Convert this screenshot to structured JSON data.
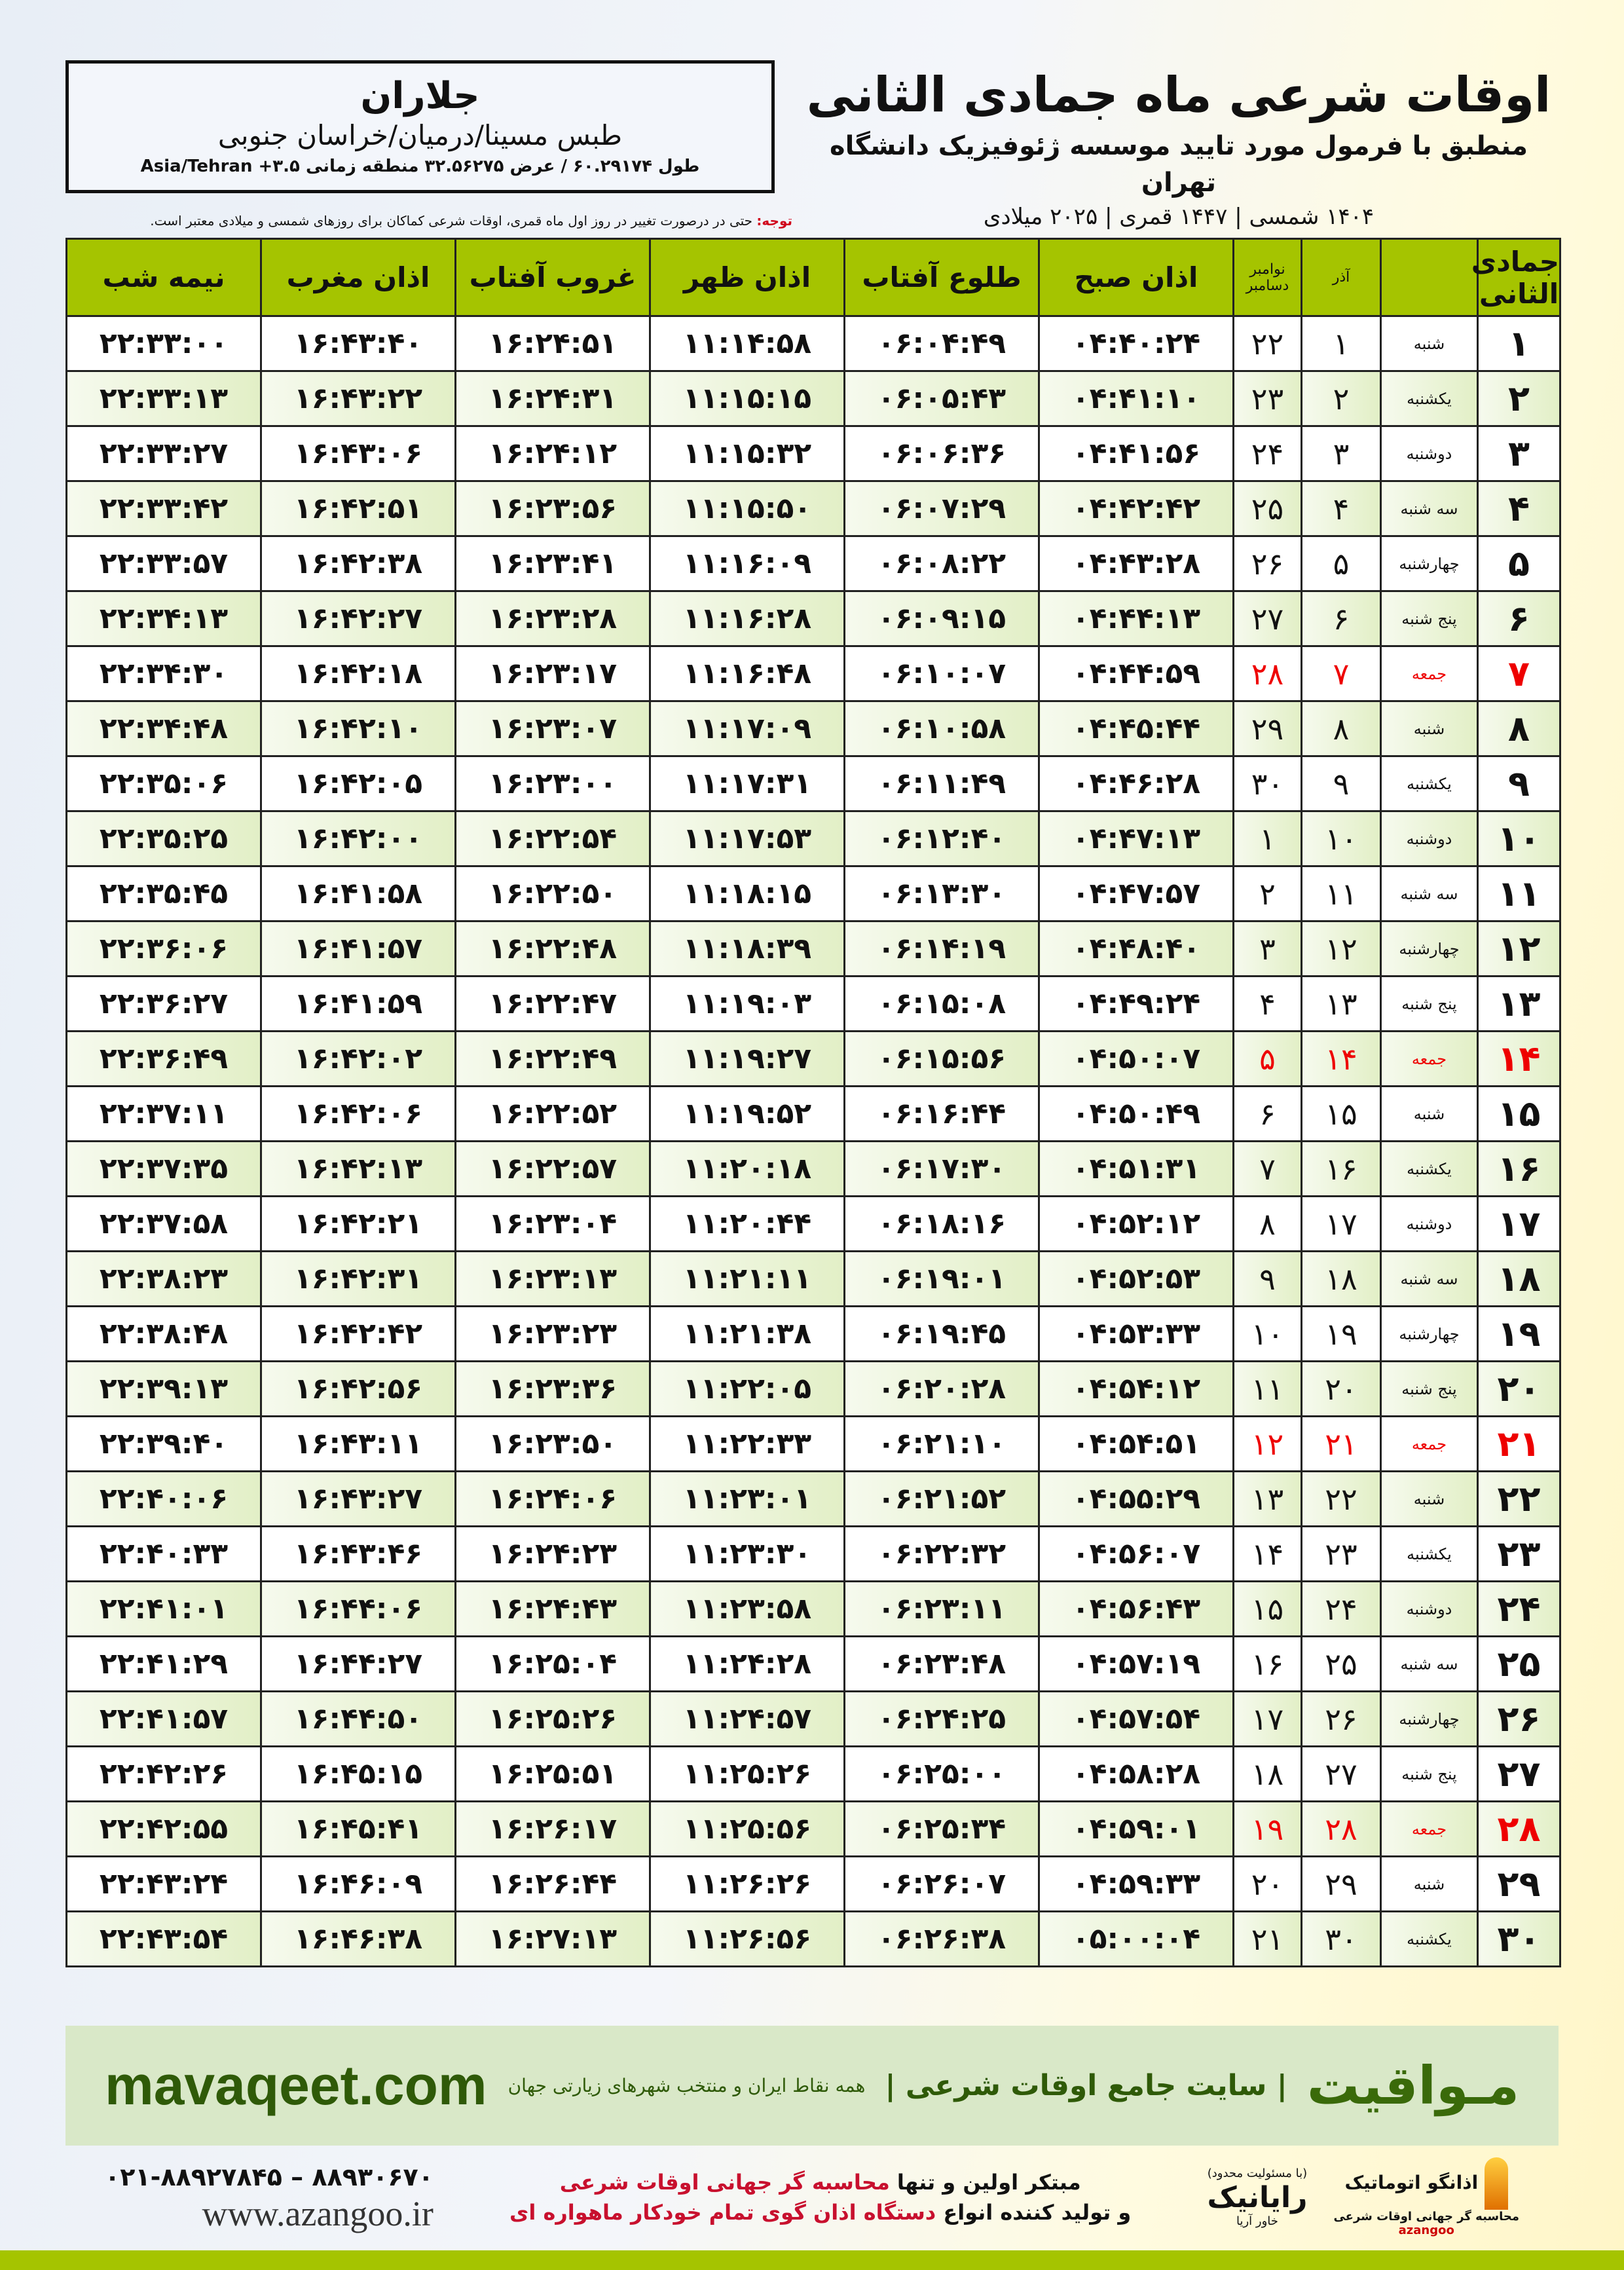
{
  "location": {
    "city": "جلاران",
    "region": "طبس مسینا/درمیان/خراسان جنوبی",
    "coords": "طول ۶۰.۲۹۱۷۴ / عرض ۳۲.۵۶۲۷۵ منطقه زمانی ۳.۵+ Asia/Tehran"
  },
  "header": {
    "title": "اوقات شرعی ماه جمادی الثانی",
    "subtitle": "منطبق با فرمول مورد تایید موسسه ژئوفیزیک دانشگاه تهران",
    "years": "۱۴۰۴ شمسی | ۱۴۴۷ قمری | ۲۰۲۵ میلادی"
  },
  "note": {
    "label": "توجه:",
    "text": " حتی در درصورت تغییر در روز اول ماه قمری، اوقات شرعی کماکان برای روزهای شمسی و میلادی معتبر است."
  },
  "table": {
    "columns": [
      "جمادی الثانی",
      "آذر",
      "نوامبر دسامبر",
      "اذان صبح",
      "طلوع آفتاب",
      "اذان ظهر",
      "غروب آفتاب",
      "اذان مغرب",
      "نیمه شب"
    ],
    "holiday_color": "#e00000",
    "rows": [
      [
        "۱",
        "شنبه",
        "۱",
        "۲۲",
        "۰۴:۴۰:۲۴",
        "۰۶:۰۴:۴۹",
        "۱۱:۱۴:۵۸",
        "۱۶:۲۴:۵۱",
        "۱۶:۴۳:۴۰",
        "۲۲:۳۳:۰۰"
      ],
      [
        "۲",
        "یکشنبه",
        "۲",
        "۲۳",
        "۰۴:۴۱:۱۰",
        "۰۶:۰۵:۴۳",
        "۱۱:۱۵:۱۵",
        "۱۶:۲۴:۳۱",
        "۱۶:۴۳:۲۲",
        "۲۲:۳۳:۱۳"
      ],
      [
        "۳",
        "دوشنبه",
        "۳",
        "۲۴",
        "۰۴:۴۱:۵۶",
        "۰۶:۰۶:۳۶",
        "۱۱:۱۵:۳۲",
        "۱۶:۲۴:۱۲",
        "۱۶:۴۳:۰۶",
        "۲۲:۳۳:۲۷"
      ],
      [
        "۴",
        "سه شنبه",
        "۴",
        "۲۵",
        "۰۴:۴۲:۴۲",
        "۰۶:۰۷:۲۹",
        "۱۱:۱۵:۵۰",
        "۱۶:۲۳:۵۶",
        "۱۶:۴۲:۵۱",
        "۲۲:۳۳:۴۲"
      ],
      [
        "۵",
        "چهارشنبه",
        "۵",
        "۲۶",
        "۰۴:۴۳:۲۸",
        "۰۶:۰۸:۲۲",
        "۱۱:۱۶:۰۹",
        "۱۶:۲۳:۴۱",
        "۱۶:۴۲:۳۸",
        "۲۲:۳۳:۵۷"
      ],
      [
        "۶",
        "پنج شنبه",
        "۶",
        "۲۷",
        "۰۴:۴۴:۱۳",
        "۰۶:۰۹:۱۵",
        "۱۱:۱۶:۲۸",
        "۱۶:۲۳:۲۸",
        "۱۶:۴۲:۲۷",
        "۲۲:۳۴:۱۳"
      ],
      [
        "۷",
        "جمعه",
        "۷",
        "۲۸",
        "۰۴:۴۴:۵۹",
        "۰۶:۱۰:۰۷",
        "۱۱:۱۶:۴۸",
        "۱۶:۲۳:۱۷",
        "۱۶:۴۲:۱۸",
        "۲۲:۳۴:۳۰"
      ],
      [
        "۸",
        "شنبه",
        "۸",
        "۲۹",
        "۰۴:۴۵:۴۴",
        "۰۶:۱۰:۵۸",
        "۱۱:۱۷:۰۹",
        "۱۶:۲۳:۰۷",
        "۱۶:۴۲:۱۰",
        "۲۲:۳۴:۴۸"
      ],
      [
        "۹",
        "یکشنبه",
        "۹",
        "۳۰",
        "۰۴:۴۶:۲۸",
        "۰۶:۱۱:۴۹",
        "۱۱:۱۷:۳۱",
        "۱۶:۲۳:۰۰",
        "۱۶:۴۲:۰۵",
        "۲۲:۳۵:۰۶"
      ],
      [
        "۱۰",
        "دوشنبه",
        "۱۰",
        "۱",
        "۰۴:۴۷:۱۳",
        "۰۶:۱۲:۴۰",
        "۱۱:۱۷:۵۳",
        "۱۶:۲۲:۵۴",
        "۱۶:۴۲:۰۰",
        "۲۲:۳۵:۲۵"
      ],
      [
        "۱۱",
        "سه شنبه",
        "۱۱",
        "۲",
        "۰۴:۴۷:۵۷",
        "۰۶:۱۳:۳۰",
        "۱۱:۱۸:۱۵",
        "۱۶:۲۲:۵۰",
        "۱۶:۴۱:۵۸",
        "۲۲:۳۵:۴۵"
      ],
      [
        "۱۲",
        "چهارشنبه",
        "۱۲",
        "۳",
        "۰۴:۴۸:۴۰",
        "۰۶:۱۴:۱۹",
        "۱۱:۱۸:۳۹",
        "۱۶:۲۲:۴۸",
        "۱۶:۴۱:۵۷",
        "۲۲:۳۶:۰۶"
      ],
      [
        "۱۳",
        "پنج شنبه",
        "۱۳",
        "۴",
        "۰۴:۴۹:۲۴",
        "۰۶:۱۵:۰۸",
        "۱۱:۱۹:۰۳",
        "۱۶:۲۲:۴۷",
        "۱۶:۴۱:۵۹",
        "۲۲:۳۶:۲۷"
      ],
      [
        "۱۴",
        "جمعه",
        "۱۴",
        "۵",
        "۰۴:۵۰:۰۷",
        "۰۶:۱۵:۵۶",
        "۱۱:۱۹:۲۷",
        "۱۶:۲۲:۴۹",
        "۱۶:۴۲:۰۲",
        "۲۲:۳۶:۴۹"
      ],
      [
        "۱۵",
        "شنبه",
        "۱۵",
        "۶",
        "۰۴:۵۰:۴۹",
        "۰۶:۱۶:۴۴",
        "۱۱:۱۹:۵۲",
        "۱۶:۲۲:۵۲",
        "۱۶:۴۲:۰۶",
        "۲۲:۳۷:۱۱"
      ],
      [
        "۱۶",
        "یکشنبه",
        "۱۶",
        "۷",
        "۰۴:۵۱:۳۱",
        "۰۶:۱۷:۳۰",
        "۱۱:۲۰:۱۸",
        "۱۶:۲۲:۵۷",
        "۱۶:۴۲:۱۳",
        "۲۲:۳۷:۳۵"
      ],
      [
        "۱۷",
        "دوشنبه",
        "۱۷",
        "۸",
        "۰۴:۵۲:۱۲",
        "۰۶:۱۸:۱۶",
        "۱۱:۲۰:۴۴",
        "۱۶:۲۳:۰۴",
        "۱۶:۴۲:۲۱",
        "۲۲:۳۷:۵۸"
      ],
      [
        "۱۸",
        "سه شنبه",
        "۱۸",
        "۹",
        "۰۴:۵۲:۵۳",
        "۰۶:۱۹:۰۱",
        "۱۱:۲۱:۱۱",
        "۱۶:۲۳:۱۳",
        "۱۶:۴۲:۳۱",
        "۲۲:۳۸:۲۳"
      ],
      [
        "۱۹",
        "چهارشنبه",
        "۱۹",
        "۱۰",
        "۰۴:۵۳:۳۳",
        "۰۶:۱۹:۴۵",
        "۱۱:۲۱:۳۸",
        "۱۶:۲۳:۲۳",
        "۱۶:۴۲:۴۲",
        "۲۲:۳۸:۴۸"
      ],
      [
        "۲۰",
        "پنج شنبه",
        "۲۰",
        "۱۱",
        "۰۴:۵۴:۱۲",
        "۰۶:۲۰:۲۸",
        "۱۱:۲۲:۰۵",
        "۱۶:۲۳:۳۶",
        "۱۶:۴۲:۵۶",
        "۲۲:۳۹:۱۳"
      ],
      [
        "۲۱",
        "جمعه",
        "۲۱",
        "۱۲",
        "۰۴:۵۴:۵۱",
        "۰۶:۲۱:۱۰",
        "۱۱:۲۲:۳۳",
        "۱۶:۲۳:۵۰",
        "۱۶:۴۳:۱۱",
        "۲۲:۳۹:۴۰"
      ],
      [
        "۲۲",
        "شنبه",
        "۲۲",
        "۱۳",
        "۰۴:۵۵:۲۹",
        "۰۶:۲۱:۵۲",
        "۱۱:۲۳:۰۱",
        "۱۶:۲۴:۰۶",
        "۱۶:۴۳:۲۷",
        "۲۲:۴۰:۰۶"
      ],
      [
        "۲۳",
        "یکشنبه",
        "۲۳",
        "۱۴",
        "۰۴:۵۶:۰۷",
        "۰۶:۲۲:۳۲",
        "۱۱:۲۳:۳۰",
        "۱۶:۲۴:۲۳",
        "۱۶:۴۳:۴۶",
        "۲۲:۴۰:۳۳"
      ],
      [
        "۲۴",
        "دوشنبه",
        "۲۴",
        "۱۵",
        "۰۴:۵۶:۴۳",
        "۰۶:۲۳:۱۱",
        "۱۱:۲۳:۵۸",
        "۱۶:۲۴:۴۳",
        "۱۶:۴۴:۰۶",
        "۲۲:۴۱:۰۱"
      ],
      [
        "۲۵",
        "سه شنبه",
        "۲۵",
        "۱۶",
        "۰۴:۵۷:۱۹",
        "۰۶:۲۳:۴۸",
        "۱۱:۲۴:۲۸",
        "۱۶:۲۵:۰۴",
        "۱۶:۴۴:۲۷",
        "۲۲:۴۱:۲۹"
      ],
      [
        "۲۶",
        "چهارشنبه",
        "۲۶",
        "۱۷",
        "۰۴:۵۷:۵۴",
        "۰۶:۲۴:۲۵",
        "۱۱:۲۴:۵۷",
        "۱۶:۲۵:۲۶",
        "۱۶:۴۴:۵۰",
        "۲۲:۴۱:۵۷"
      ],
      [
        "۲۷",
        "پنج شنبه",
        "۲۷",
        "۱۸",
        "۰۴:۵۸:۲۸",
        "۰۶:۲۵:۰۰",
        "۱۱:۲۵:۲۶",
        "۱۶:۲۵:۵۱",
        "۱۶:۴۵:۱۵",
        "۲۲:۴۲:۲۶"
      ],
      [
        "۲۸",
        "جمعه",
        "۲۸",
        "۱۹",
        "۰۴:۵۹:۰۱",
        "۰۶:۲۵:۳۴",
        "۱۱:۲۵:۵۶",
        "۱۶:۲۶:۱۷",
        "۱۶:۴۵:۴۱",
        "۲۲:۴۲:۵۵"
      ],
      [
        "۲۹",
        "شنبه",
        "۲۹",
        "۲۰",
        "۰۴:۵۹:۳۳",
        "۰۶:۲۶:۰۷",
        "۱۱:۲۶:۲۶",
        "۱۶:۲۶:۴۴",
        "۱۶:۴۶:۰۹",
        "۲۲:۴۳:۲۴"
      ],
      [
        "۳۰",
        "یکشنبه",
        "۳۰",
        "۲۱",
        "۰۵:۰۰:۰۴",
        "۰۶:۲۶:۳۸",
        "۱۱:۲۶:۵۶",
        "۱۶:۲۷:۱۳",
        "۱۶:۴۶:۳۸",
        "۲۲:۴۳:۵۴"
      ]
    ]
  },
  "banner": {
    "brand": "مـواقیت",
    "tagline": "| سایت جامع اوقات شرعی |",
    "sub": "همه نقاط ایران و منتخب شهرهای زیارتی جهان",
    "site": "mavaqeet.com"
  },
  "footer": {
    "phone": "۰۲۱-۸۸۹۲۷۸۴۵ – ۸۸۹۳۰۶۷۰",
    "www": "www.azangoo.ir",
    "line1a": "مبتکر اولین و تنها ",
    "line1b": "محاسبه گر جهانی اوقات شرعی",
    "line2a": "و تولید کننده انواع ",
    "line2b": "دستگاه اذان گوی تمام خودکار ماهواره ای",
    "logo1": "اذانگو اتوماتیک",
    "logo1_sub": "محاسبه گر جهانی اوقات شرعی",
    "logo1_latin": "azangoo",
    "logo2": "رایانیک",
    "logo2_sub": "خاور آریا",
    "logo2_note": "(با مسئولیت محدود)"
  }
}
